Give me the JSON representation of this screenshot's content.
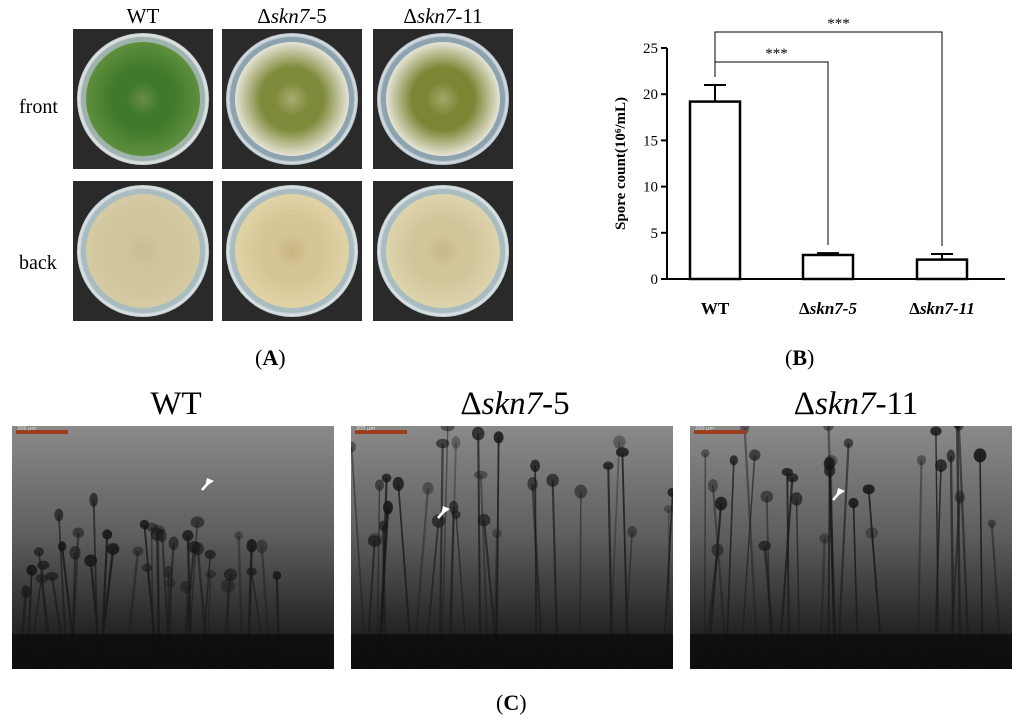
{
  "panel_a": {
    "columns": [
      {
        "prefix": "WT",
        "italic": "",
        "suffix": ""
      },
      {
        "prefix": "Δ",
        "italic": "skn7",
        "suffix": "-5"
      },
      {
        "prefix": "Δ",
        "italic": "skn7",
        "suffix": "-11"
      }
    ],
    "rows": [
      "front",
      "back"
    ],
    "plates": {
      "front": [
        {
          "rim": "#c9cfd2",
          "agar": "#9fb3ad",
          "colony_outer": "#5f8f3d",
          "colony_inner": "#3f7a2a",
          "center": "#6a8a4a"
        },
        {
          "rim": "#b8c4cc",
          "agar": "#8ea3b0",
          "colony_outer": "#e6e4d6",
          "colony_inner": "#7f8a3a",
          "center": "#a8ad72"
        },
        {
          "rim": "#b8c4cc",
          "agar": "#8ea3b0",
          "colony_outer": "#e6e4d6",
          "colony_inner": "#7b8534",
          "center": "#a3a86a"
        }
      ],
      "back": [
        {
          "rim": "#c5d0d4",
          "agar": "#a9bcc0",
          "colony_outer": "#d4cba4",
          "colony_inner": "#cfc49a",
          "center": "#c9bd92"
        },
        {
          "rim": "#c5d0d4",
          "agar": "#a9bcc0",
          "colony_outer": "#e0d3a6",
          "colony_inner": "#d6c695",
          "center": "#c6b47e"
        },
        {
          "rim": "#c5d0d4",
          "agar": "#a9bcc0",
          "colony_outer": "#ddd4ad",
          "colony_inner": "#d2c59a",
          "center": "#c6b787"
        }
      ]
    },
    "label_open": "(",
    "label_letter": "A",
    "label_close": ")"
  },
  "panel_b": {
    "label_open": "(",
    "label_letter": "B",
    "label_close": ")"
  },
  "chart_data": {
    "type": "bar",
    "categories": [
      "WT",
      "Δskn7-5",
      "Δskn7-11"
    ],
    "category_parts": [
      {
        "prefix": "WT",
        "italic": ""
      },
      {
        "prefix": "Δ",
        "italic": "skn7-5"
      },
      {
        "prefix": "Δ",
        "italic": "skn7-11"
      }
    ],
    "values": [
      19.2,
      2.6,
      2.1
    ],
    "errors": [
      1.8,
      0.2,
      0.6
    ],
    "ylabel": "Spore count(10⁶/mL)",
    "ylim": [
      0,
      25
    ],
    "yticks": [
      0,
      5,
      10,
      15,
      20,
      25
    ],
    "significance": [
      {
        "from": 0,
        "to": 1,
        "label": "***"
      },
      {
        "from": 0,
        "to": 2,
        "label": "***"
      }
    ],
    "bar_fill": "#ffffff",
    "bar_stroke": "#000000"
  },
  "panel_c": {
    "titles": [
      {
        "prefix": "WT",
        "italic": "",
        "suffix": ""
      },
      {
        "prefix": "Δ",
        "italic": "skn7",
        "suffix": "-5"
      },
      {
        "prefix": "Δ",
        "italic": "skn7",
        "suffix": "-11"
      }
    ],
    "scale_labels": [
      "200 μm",
      "200 μm",
      "200 μm"
    ],
    "label_open": "(",
    "label_letter": "C",
    "label_close": ")"
  }
}
